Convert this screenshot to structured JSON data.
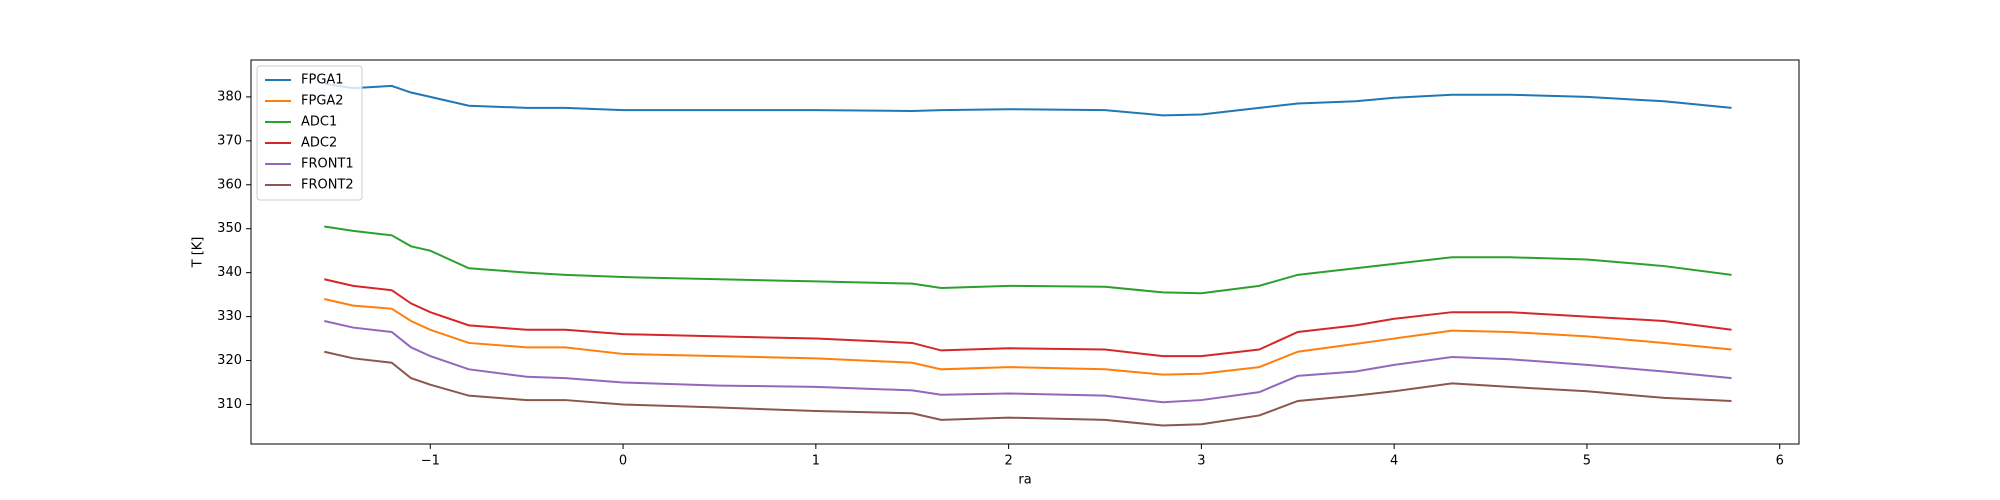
{
  "chart_data": {
    "type": "line",
    "xlabel": "ra",
    "ylabel": "T [K]",
    "x": [
      -1.55,
      -1.4,
      -1.2,
      -1.1,
      -1,
      -0.8,
      -0.5,
      -0.3,
      0,
      0.5,
      1,
      1.5,
      1.65,
      2,
      2.5,
      2.8,
      3,
      3.3,
      3.5,
      3.8,
      4,
      4.3,
      4.6,
      5,
      5.4,
      5.75
    ],
    "series": [
      {
        "name": "FPGA1",
        "color": "#1f77b4",
        "values": [
          383,
          382,
          382.5,
          381,
          380,
          378,
          377.5,
          377.5,
          377,
          377,
          377,
          376.8,
          377,
          377.2,
          377,
          375.8,
          376,
          377.5,
          378.5,
          379,
          379.8,
          380.5,
          380.5,
          380,
          379,
          377.5
        ]
      },
      {
        "name": "FPGA2",
        "color": "#ff7f0e",
        "values": [
          334,
          332.5,
          331.8,
          329,
          327,
          324,
          323,
          323,
          321.5,
          321,
          320.5,
          319.5,
          318,
          318.5,
          318,
          316.8,
          317,
          318.5,
          322,
          323.8,
          325,
          326.8,
          326.5,
          325.5,
          324,
          322.5
        ]
      },
      {
        "name": "ADC1",
        "color": "#2ca02c",
        "values": [
          350.5,
          349.5,
          348.5,
          346,
          345,
          341,
          340,
          339.5,
          339,
          338.5,
          338,
          337.5,
          336.5,
          337,
          336.8,
          335.5,
          335.3,
          337,
          339.5,
          341,
          342,
          343.5,
          343.5,
          343,
          341.5,
          339.5
        ]
      },
      {
        "name": "ADC2",
        "color": "#d62728",
        "values": [
          338.5,
          337,
          336,
          333,
          331,
          328,
          327,
          327,
          326,
          325.5,
          325,
          324,
          322.3,
          322.8,
          322.5,
          321,
          321,
          322.5,
          326.5,
          328,
          329.5,
          331,
          331,
          330,
          329,
          327
        ]
      },
      {
        "name": "FRONT1",
        "color": "#9467bd",
        "values": [
          329,
          327.5,
          326.5,
          323,
          321,
          318,
          316.3,
          316,
          315,
          314.3,
          314,
          313.2,
          312.2,
          312.5,
          312,
          310.5,
          311,
          312.8,
          316.5,
          317.5,
          319,
          320.8,
          320.3,
          319,
          317.5,
          316
        ]
      },
      {
        "name": "FRONT2",
        "color": "#8c564b",
        "values": [
          322,
          320.5,
          319.5,
          316,
          314.5,
          312,
          311,
          311,
          310,
          309.3,
          308.5,
          308,
          306.5,
          307,
          306.5,
          305.2,
          305.5,
          307.5,
          310.8,
          312,
          313,
          314.8,
          314,
          313,
          311.5,
          310.8
        ]
      }
    ],
    "xlim": [
      -1.93,
      6.1
    ],
    "ylim": [
      301,
      388.4
    ],
    "xticks": [
      {
        "value": -1,
        "label": "−1"
      },
      0,
      1,
      2,
      3,
      4,
      5,
      6
    ],
    "yticks": [
      310,
      320,
      330,
      340,
      350,
      360,
      370,
      380
    ],
    "legend": "upper left"
  }
}
